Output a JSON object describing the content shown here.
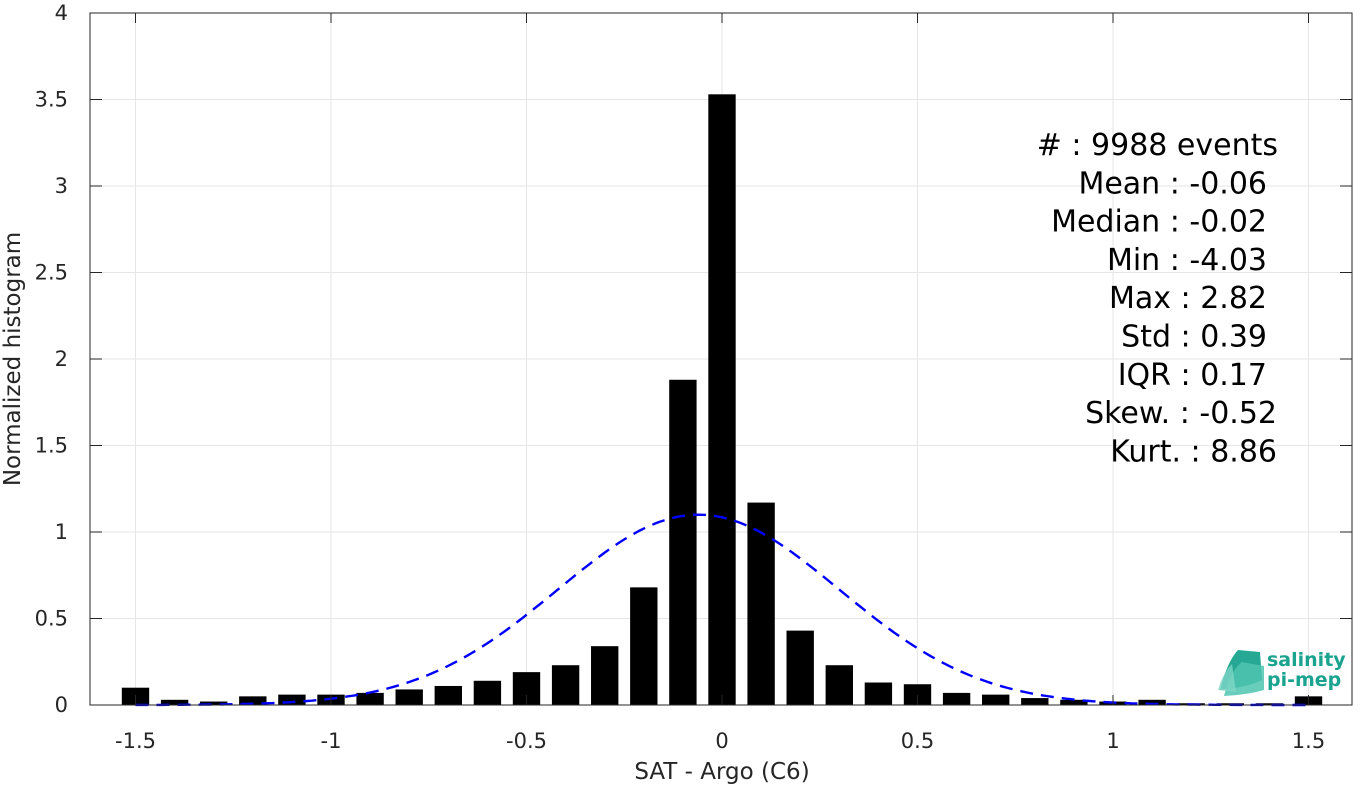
{
  "chart_data": {
    "type": "bar",
    "xlabel": "SAT - Argo (C6)",
    "ylabel": "Normalized histogram",
    "xlim": [
      -1.55,
      1.62
    ],
    "ylim": [
      0,
      4
    ],
    "xticks": [
      -1.5,
      -1,
      -0.5,
      0,
      0.5,
      1,
      1.5
    ],
    "xtick_labels": [
      "-1.5",
      "-1",
      "-0.5",
      "0",
      "0.5",
      "1",
      "1.5"
    ],
    "yticks": [
      0,
      0.5,
      1,
      1.5,
      2,
      2.5,
      3,
      3.5,
      4
    ],
    "ytick_labels": [
      "0",
      "0.5",
      "1",
      "1.5",
      "2",
      "2.5",
      "3",
      "3.5",
      "4"
    ],
    "grid": true,
    "bin_centers": [
      -1.5,
      -1.4,
      -1.3,
      -1.2,
      -1.1,
      -1.0,
      -0.9,
      -0.8,
      -0.7,
      -0.6,
      -0.5,
      -0.4,
      -0.3,
      -0.2,
      -0.1,
      0.0,
      0.1,
      0.2,
      0.3,
      0.4,
      0.5,
      0.6,
      0.7,
      0.8,
      0.9,
      1.0,
      1.1,
      1.2,
      1.3,
      1.4,
      1.5
    ],
    "values": [
      0.1,
      0.03,
      0.02,
      0.05,
      0.06,
      0.06,
      0.07,
      0.09,
      0.11,
      0.14,
      0.19,
      0.23,
      0.34,
      0.68,
      1.88,
      3.53,
      1.17,
      0.43,
      0.23,
      0.13,
      0.12,
      0.07,
      0.06,
      0.04,
      0.03,
      0.02,
      0.03,
      0.01,
      0.01,
      0.01,
      0.05
    ],
    "bar_color": "#000000",
    "fit_curve": {
      "style": "dashed",
      "color": "#0000ff",
      "mean": -0.06,
      "std": 0.36,
      "peak": 1.1
    },
    "stats": [
      "#  : 9988 events",
      "Mean : -0.06",
      "Median : -0.02",
      "Min : -4.03",
      "Max : 2.82",
      "Std : 0.39",
      "IQR : 0.17",
      "Skew. : -0.52",
      "Kurt. : 8.86"
    ]
  },
  "logo": {
    "line1": "salinity",
    "line2": "pi-mep",
    "color": "#1aa38f"
  }
}
